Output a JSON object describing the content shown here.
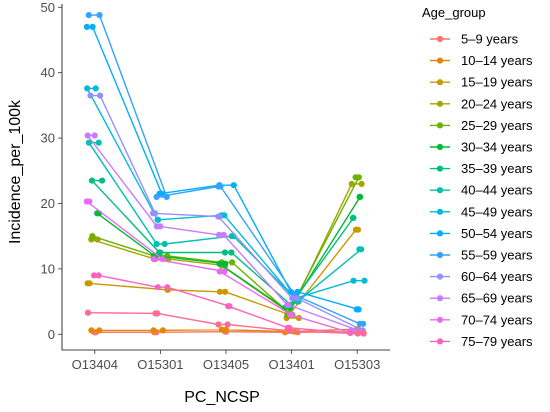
{
  "chart_data": {
    "type": "line",
    "title": "",
    "xlabel": "PC_NCSP",
    "ylabel": "Incidence_per_100k",
    "categories": [
      "O13404",
      "O15301",
      "O13405",
      "O13401",
      "O15303"
    ],
    "yticks": [
      0,
      10,
      20,
      30,
      40,
      50
    ],
    "ylim": [
      -2.4,
      50.5
    ],
    "grid": false,
    "legend_title": "Age_group",
    "legend_position": "right",
    "series": [
      {
        "name": "5–9 years",
        "color": "#F8766D",
        "points": [
          [
            0,
            0.3
          ],
          [
            0,
            0.3
          ],
          [
            1,
            0.3
          ],
          [
            1,
            0.3
          ],
          [
            2,
            0.4
          ],
          [
            2,
            0.4
          ],
          [
            3,
            0.3
          ],
          [
            3,
            0.3
          ],
          [
            4,
            0.4
          ],
          [
            4,
            0.4
          ]
        ]
      },
      {
        "name": "10–14 years",
        "color": "#E58700",
        "points": [
          [
            0,
            0.6
          ],
          [
            0,
            0.6
          ],
          [
            1,
            0.6
          ],
          [
            1,
            0.6
          ],
          [
            2,
            0.7
          ],
          [
            2,
            0.7
          ],
          [
            3,
            0.4
          ],
          [
            3,
            0.4
          ],
          [
            4,
            0.8
          ],
          [
            4,
            0.8
          ]
        ]
      },
      {
        "name": "15–19 years",
        "color": "#C99800",
        "points": [
          [
            0,
            7.8
          ],
          [
            0,
            7.8
          ],
          [
            1,
            6.8
          ],
          [
            1,
            6.8
          ],
          [
            2,
            6.5
          ],
          [
            2,
            6.5
          ],
          [
            3,
            2.5
          ],
          [
            3,
            2.5
          ],
          [
            4,
            16.0
          ],
          [
            4,
            16.0
          ]
        ]
      },
      {
        "name": "20–24 years",
        "color": "#A3A500",
        "points": [
          [
            0,
            14.5
          ],
          [
            0,
            14.5
          ],
          [
            1,
            11.5
          ],
          [
            1,
            11.5
          ],
          [
            2,
            10.5
          ],
          [
            2,
            10.5
          ],
          [
            3,
            3.0
          ],
          [
            3,
            3.0
          ],
          [
            4,
            23.0
          ],
          [
            4,
            23.0
          ]
        ]
      },
      {
        "name": "25–29 years",
        "color": "#6BB100",
        "points": [
          [
            0,
            15.0
          ],
          [
            0,
            15.0
          ],
          [
            1,
            12.0
          ],
          [
            1,
            12.0
          ],
          [
            2,
            11.0
          ],
          [
            2,
            11.0
          ],
          [
            3,
            3.0
          ],
          [
            3,
            3.0
          ],
          [
            4,
            24.0
          ],
          [
            4,
            24.0
          ]
        ]
      },
      {
        "name": "30–34 years",
        "color": "#00BA38",
        "points": [
          [
            0,
            18.5
          ],
          [
            0,
            18.5
          ],
          [
            1,
            12.0
          ],
          [
            1,
            12.0
          ],
          [
            2,
            10.8
          ],
          [
            2,
            10.8
          ],
          [
            3,
            4.0
          ],
          [
            3,
            4.0
          ],
          [
            4,
            21.0
          ],
          [
            4,
            21.0
          ]
        ]
      },
      {
        "name": "35–39 years",
        "color": "#00BF7D",
        "points": [
          [
            0,
            23.5
          ],
          [
            0,
            23.5
          ],
          [
            1,
            12.5
          ],
          [
            1,
            12.5
          ],
          [
            2,
            12.5
          ],
          [
            2,
            12.5
          ],
          [
            3,
            4.5
          ],
          [
            3,
            4.5
          ],
          [
            4,
            17.8
          ],
          [
            4,
            17.8
          ]
        ]
      },
      {
        "name": "40–44 years",
        "color": "#00C0AF",
        "points": [
          [
            0,
            29.3
          ],
          [
            0,
            29.3
          ],
          [
            1,
            13.8
          ],
          [
            1,
            13.8
          ],
          [
            2,
            15.0
          ],
          [
            2,
            15.0
          ],
          [
            3,
            5.0
          ],
          [
            3,
            5.0
          ],
          [
            4,
            13.0
          ],
          [
            4,
            13.0
          ]
        ]
      },
      {
        "name": "45–49 years",
        "color": "#00BCD8",
        "points": [
          [
            0,
            37.6
          ],
          [
            0,
            37.6
          ],
          [
            1,
            17.5
          ],
          [
            1,
            17.5
          ],
          [
            2,
            18.2
          ],
          [
            2,
            18.2
          ],
          [
            3,
            5.5
          ],
          [
            3,
            5.5
          ],
          [
            4,
            8.2
          ],
          [
            4,
            8.2
          ]
        ]
      },
      {
        "name": "50–54 years",
        "color": "#00B0F6",
        "points": [
          [
            0,
            47.0
          ],
          [
            0,
            47.0
          ],
          [
            1,
            21.5
          ],
          [
            1,
            21.5
          ],
          [
            2,
            22.8
          ],
          [
            2,
            22.8
          ],
          [
            3,
            6.5
          ],
          [
            3,
            6.5
          ],
          [
            4,
            3.8
          ],
          [
            4,
            3.8
          ]
        ]
      },
      {
        "name": "55–59 years",
        "color": "#35A2FF",
        "points": [
          [
            0,
            48.8
          ],
          [
            0,
            48.8
          ],
          [
            1,
            21.0
          ],
          [
            1,
            21.0
          ],
          [
            2,
            22.6
          ],
          [
            2,
            22.6
          ],
          [
            3,
            6.0
          ],
          [
            3,
            6.0
          ],
          [
            4,
            1.6
          ],
          [
            4,
            1.6
          ]
        ]
      },
      {
        "name": "60–64 years",
        "color": "#9590FF",
        "points": [
          [
            0,
            36.5
          ],
          [
            0,
            36.5
          ],
          [
            1,
            18.5
          ],
          [
            1,
            18.5
          ],
          [
            2,
            18.0
          ],
          [
            2,
            18.0
          ],
          [
            3,
            5.5
          ],
          [
            3,
            5.5
          ],
          [
            4,
            0.6
          ],
          [
            4,
            0.6
          ]
        ]
      },
      {
        "name": "65–69 years",
        "color": "#C77CFF",
        "points": [
          [
            0,
            30.4
          ],
          [
            0,
            30.4
          ],
          [
            1,
            16.5
          ],
          [
            1,
            16.5
          ],
          [
            2,
            15.2
          ],
          [
            2,
            15.2
          ],
          [
            3,
            4.5
          ],
          [
            3,
            4.5
          ],
          [
            4,
            0.4
          ],
          [
            4,
            0.4
          ]
        ]
      },
      {
        "name": "70–74 years",
        "color": "#E76BF3",
        "points": [
          [
            0,
            20.3
          ],
          [
            0,
            20.3
          ],
          [
            1,
            11.5
          ],
          [
            1,
            11.5
          ],
          [
            2,
            9.6
          ],
          [
            2,
            9.6
          ],
          [
            3,
            3.0
          ],
          [
            3,
            3.0
          ],
          [
            4,
            0.3
          ],
          [
            4,
            0.3
          ]
        ]
      },
      {
        "name": "75–79 years",
        "color": "#FF62BC",
        "points": [
          [
            0,
            9.0
          ],
          [
            0,
            9.0
          ],
          [
            1,
            7.2
          ],
          [
            1,
            7.2
          ],
          [
            2,
            4.3
          ],
          [
            2,
            4.3
          ],
          [
            3,
            1.0
          ],
          [
            3,
            1.0
          ],
          [
            4,
            0.2
          ],
          [
            4,
            0.2
          ]
        ]
      },
      {
        "name": "",
        "color": "#FF6C91",
        "points": [
          [
            0,
            3.3
          ],
          [
            0,
            3.3
          ],
          [
            1,
            3.2
          ],
          [
            1,
            3.2
          ],
          [
            2,
            1.5
          ],
          [
            2,
            1.5
          ],
          [
            3,
            0.5
          ],
          [
            3,
            0.5
          ],
          [
            4,
            0.1
          ],
          [
            4,
            0.1
          ]
        ]
      }
    ]
  }
}
